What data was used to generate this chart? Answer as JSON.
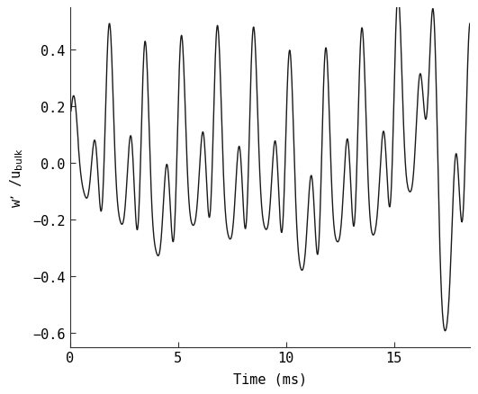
{
  "xlabel": "Time (ms)",
  "ylabel": "w’ /u$_{\\mathrm{bulk}}$",
  "xlim": [
    0,
    18.5
  ],
  "ylim": [
    -0.65,
    0.55
  ],
  "xticks": [
    0,
    5,
    10,
    15
  ],
  "yticks": [
    -0.6,
    -0.4,
    -0.2,
    0.0,
    0.2,
    0.4
  ],
  "line_color": "#1a1a1a",
  "line_width": 1.0,
  "bg_color": "#ffffff",
  "figsize": [
    5.31,
    4.39
  ],
  "dpi": 100,
  "font_family": "DejaVu Sans Mono",
  "font_size": 11
}
